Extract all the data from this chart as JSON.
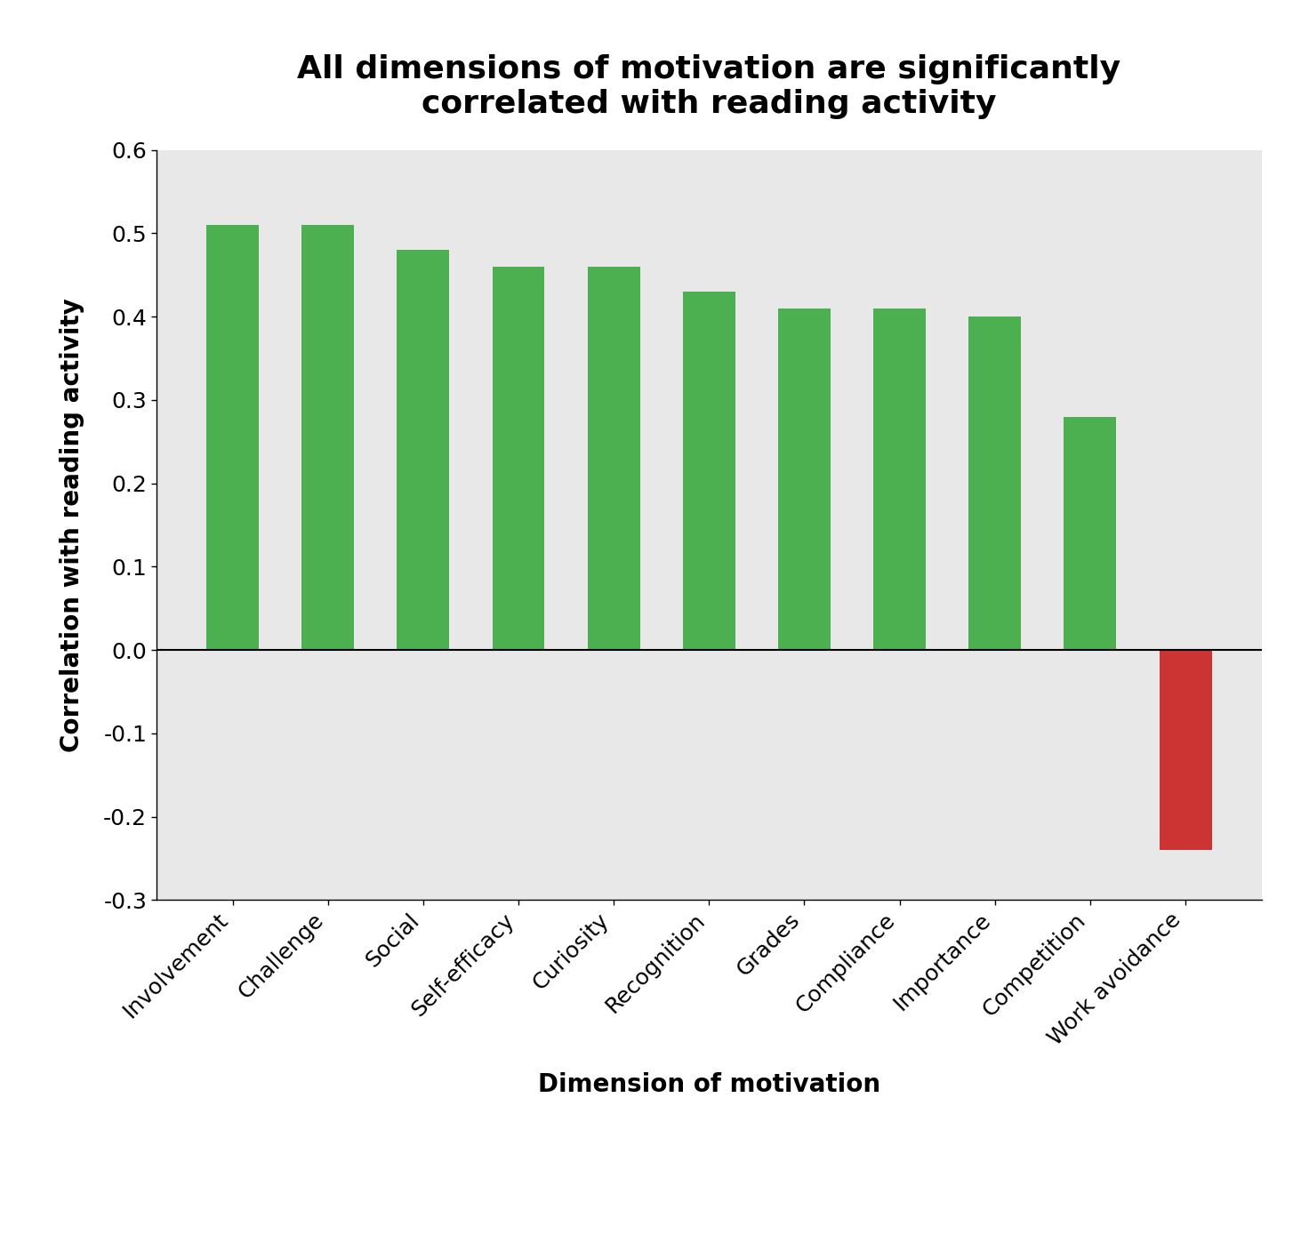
{
  "title": "All dimensions of motivation are significantly\ncorrelated with reading activity",
  "xlabel": "Dimension of motivation",
  "ylabel": "Correlation with reading activity",
  "categories": [
    "Involvement",
    "Challenge",
    "Social",
    "Self-efficacy",
    "Curiosity",
    "Recognition",
    "Grades",
    "Compliance",
    "Importance",
    "Competition",
    "Work avoidance"
  ],
  "values": [
    0.51,
    0.51,
    0.48,
    0.46,
    0.46,
    0.43,
    0.41,
    0.41,
    0.4,
    0.28,
    -0.24
  ],
  "bar_colors": [
    "#4caf50",
    "#4caf50",
    "#4caf50",
    "#4caf50",
    "#4caf50",
    "#4caf50",
    "#4caf50",
    "#4caf50",
    "#4caf50",
    "#4caf50",
    "#cc3333"
  ],
  "ylim": [
    -0.3,
    0.6
  ],
  "yticks": [
    -0.3,
    -0.2,
    -0.1,
    0.0,
    0.1,
    0.2,
    0.3,
    0.4,
    0.5,
    0.6
  ],
  "background_color": "#e8e8e8",
  "title_fontsize": 26,
  "axis_label_fontsize": 20,
  "tick_fontsize": 18,
  "bar_width": 0.55
}
